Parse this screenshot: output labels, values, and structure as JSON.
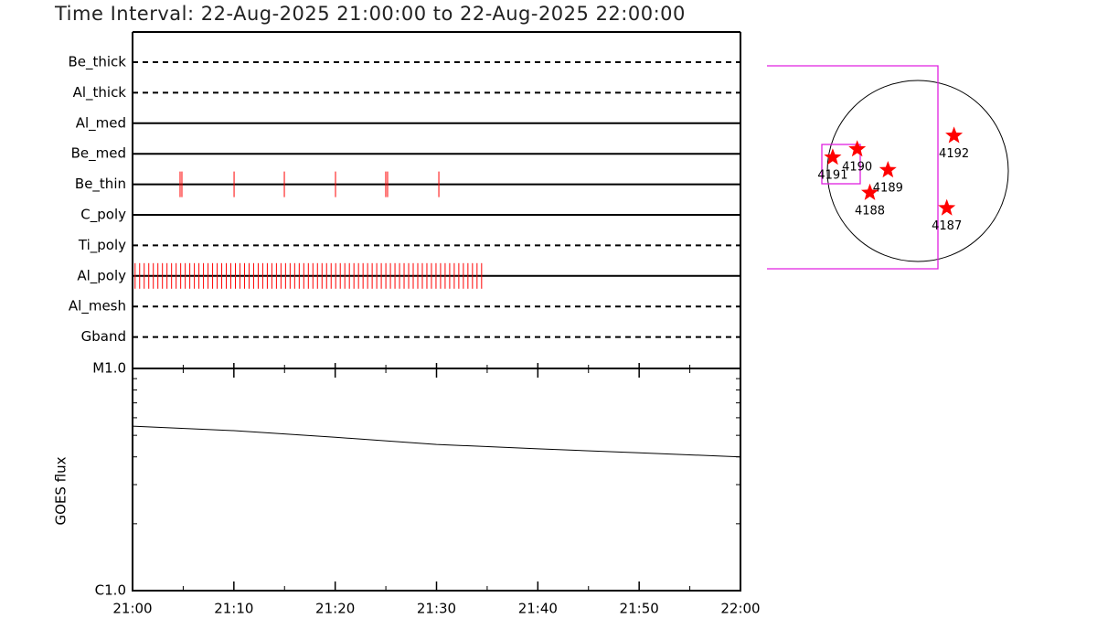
{
  "title": "Time Interval: 22-Aug-2025 21:00:00 to 22-Aug-2025 22:00:00",
  "chart_data": [
    {
      "type": "timeline",
      "categories": [
        "Be_thick",
        "Al_thick",
        "Al_med",
        "Be_med",
        "Be_thin",
        "C_poly",
        "Ti_poly",
        "Al_poly",
        "Al_mesh",
        "Gband"
      ],
      "line_styles": [
        "dashed",
        "dashed",
        "solid",
        "solid",
        "solid",
        "solid",
        "dashed",
        "solid",
        "dashed",
        "dashed"
      ],
      "color": "#ff0000",
      "xlim": [
        0,
        60
      ],
      "exposures": [
        [],
        [],
        [],
        [],
        [
          4.69,
          4.87,
          10.02,
          14.98,
          20.03,
          24.99,
          25.17,
          30.23
        ],
        [],
        [],
        [
          0.25,
          0.7,
          1.15,
          1.6,
          2.05,
          2.5,
          2.95,
          3.4,
          3.85,
          4.3,
          4.75,
          5.2,
          5.65,
          6.1,
          6.55,
          7.0,
          7.45,
          7.9,
          8.35,
          8.8,
          9.25,
          9.7,
          10.15,
          10.6,
          11.05,
          11.5,
          11.95,
          12.4,
          12.85,
          13.3,
          13.75,
          14.2,
          14.65,
          15.1,
          15.55,
          16.0,
          16.45,
          16.9,
          17.35,
          17.8,
          18.25,
          18.7,
          19.15,
          19.6,
          20.05,
          20.5,
          20.95,
          21.4,
          21.85,
          22.3,
          22.75,
          23.2,
          23.65,
          24.1,
          24.55,
          25.0,
          25.45,
          25.9,
          26.35,
          26.8,
          27.25,
          27.7,
          28.15,
          28.6,
          29.05,
          29.5,
          29.95,
          30.4,
          30.85,
          31.3,
          31.75,
          32.2,
          32.65,
          33.1,
          33.55,
          34.0,
          34.45
        ],
        [],
        []
      ]
    },
    {
      "type": "line",
      "ylabel": "GOES flux",
      "log_scale": true,
      "color": "#000000",
      "x": [
        0,
        10,
        20,
        30,
        40,
        50,
        60
      ],
      "values": [
        5.5e-06,
        5.25e-06,
        4.9e-06,
        4.55e-06,
        4.35e-06,
        4.17e-06,
        4e-06
      ],
      "xlim": [
        0,
        60
      ],
      "xticks": [
        {
          "value": 0,
          "label": "21:00"
        },
        {
          "value": 10,
          "label": "21:10"
        },
        {
          "value": 20,
          "label": "21:20"
        },
        {
          "value": 30,
          "label": "21:30"
        },
        {
          "value": 40,
          "label": "21:40"
        },
        {
          "value": 50,
          "label": "21:50"
        },
        {
          "value": 60,
          "label": "22:00"
        }
      ],
      "xminorticks": [
        5,
        15,
        25,
        35,
        45,
        55
      ],
      "ylim": [
        1e-06,
        1e-05
      ],
      "yticks": [
        {
          "value": 1e-06,
          "label": "C1.0"
        },
        {
          "value": 1e-05,
          "label": "M1.0"
        }
      ],
      "yminorticks": [
        2e-06,
        3e-06,
        4e-06,
        5e-06,
        6e-06,
        7e-06,
        8e-06,
        9e-06
      ]
    },
    {
      "type": "map",
      "color": "#ff0000",
      "regions": [
        {
          "label": "4191",
          "x": -0.94,
          "y": 0.15
        },
        {
          "label": "4190",
          "x": -0.67,
          "y": 0.24
        },
        {
          "label": "4189",
          "x": -0.33,
          "y": 0.01
        },
        {
          "label": "4188",
          "x": -0.53,
          "y": -0.24
        },
        {
          "label": "4192",
          "x": 0.4,
          "y": 0.39
        },
        {
          "label": "4187",
          "x": 0.32,
          "y": -0.41
        }
      ]
    }
  ]
}
